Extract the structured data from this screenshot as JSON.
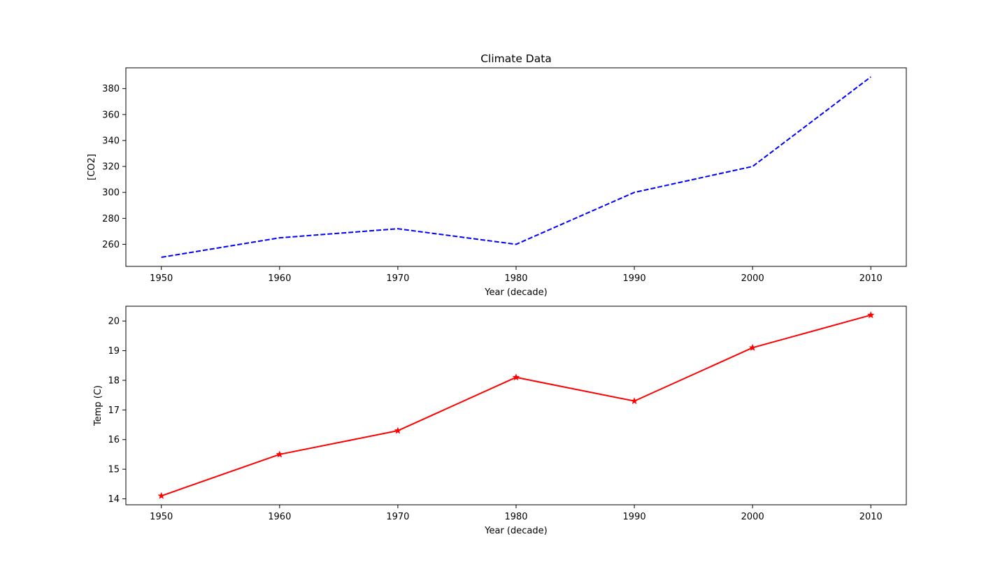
{
  "chart_data": [
    {
      "type": "line",
      "title": "Climate Data",
      "xlabel": "Year (decade)",
      "ylabel": "[CO2]",
      "x": [
        1950,
        1960,
        1970,
        1980,
        1990,
        2000,
        2010
      ],
      "xticks": [
        "1950",
        "1960",
        "1970",
        "1980",
        "1990",
        "2000",
        "2010"
      ],
      "yticks": [
        "260",
        "280",
        "300",
        "320",
        "340",
        "360",
        "380"
      ],
      "xlim": [
        1947,
        2013
      ],
      "ylim": [
        243,
        396
      ],
      "grid": false,
      "series": [
        {
          "values": [
            250,
            265,
            272,
            260,
            300,
            320,
            389
          ],
          "color": "#0000ff",
          "linestyle": "dashed",
          "marker": "none"
        }
      ]
    },
    {
      "type": "line",
      "title": "",
      "xlabel": "Year (decade)",
      "ylabel": "Temp (C)",
      "x": [
        1950,
        1960,
        1970,
        1980,
        1990,
        2000,
        2010
      ],
      "xticks": [
        "1950",
        "1960",
        "1970",
        "1980",
        "1990",
        "2000",
        "2010"
      ],
      "yticks": [
        "14",
        "15",
        "16",
        "17",
        "18",
        "19",
        "20"
      ],
      "xlim": [
        1947,
        2013
      ],
      "ylim": [
        13.8,
        20.5
      ],
      "grid": false,
      "series": [
        {
          "values": [
            14.1,
            15.5,
            16.3,
            18.1,
            17.3,
            19.1,
            20.2
          ],
          "color": "#ff0000",
          "linestyle": "solid",
          "marker": "star"
        }
      ]
    }
  ]
}
